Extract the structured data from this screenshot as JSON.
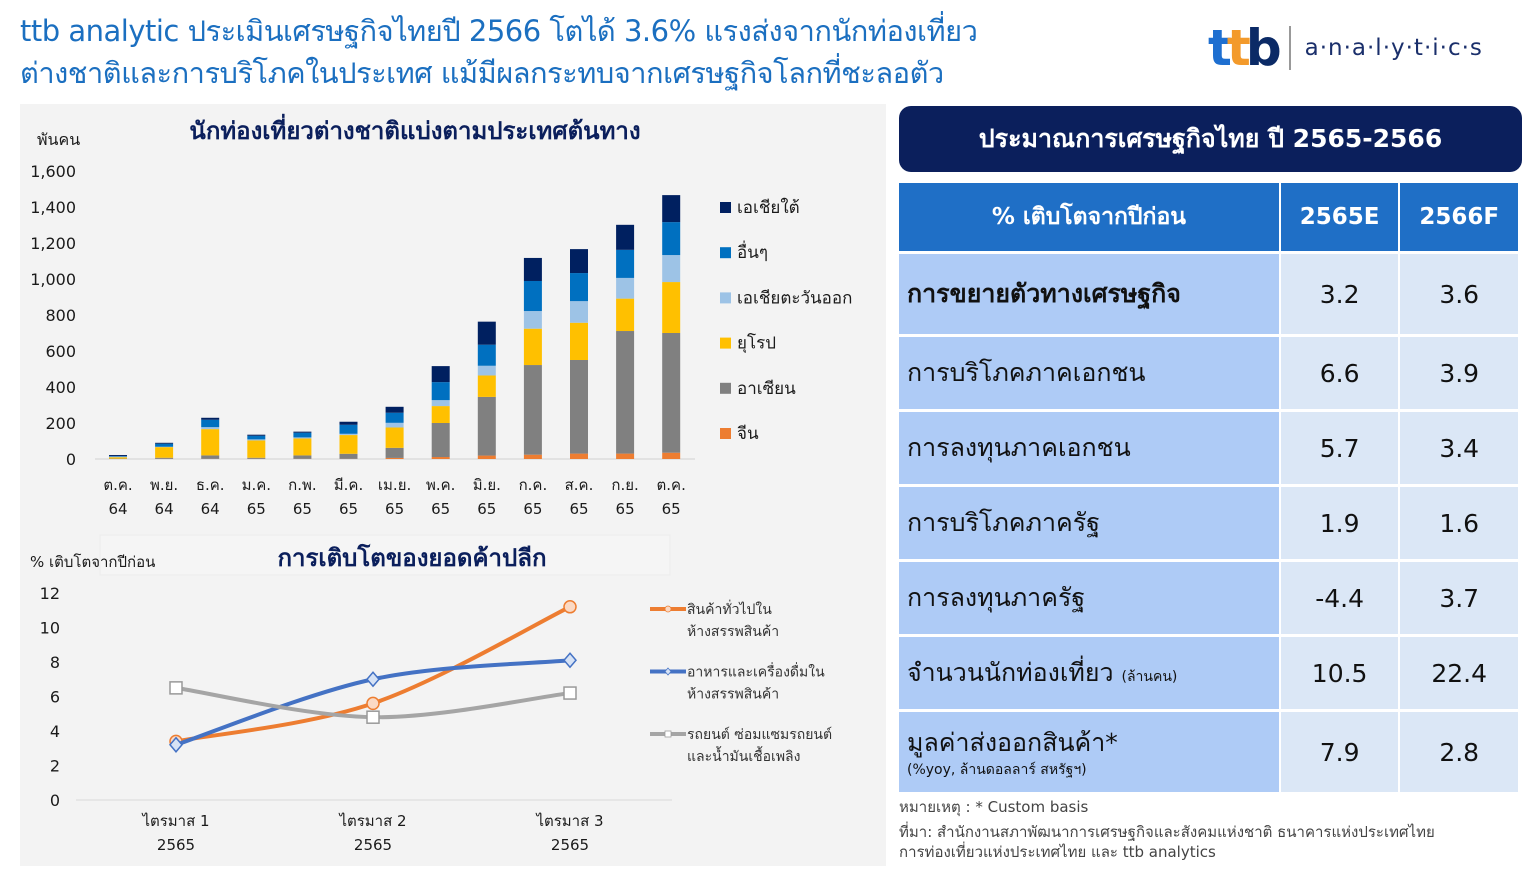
{
  "title": {
    "line1": "ttb analytic ประเมินเศรษฐกิจไทยปี 2566 โตได้ 3.6% แรงส่งจากนักท่องเที่ยว",
    "line2": "ต่างชาติและการบริโภคในประเทศ แม้มีผลกระทบจากเศรษฐกิจโลกที่ชะลอตัว"
  },
  "logo": {
    "mark": "ttb",
    "text": "a·n·a·l·y·t·i·c·s",
    "colors": [
      "#1e6fd0",
      "#f39a2b",
      "#0b2a66"
    ]
  },
  "chart_data": [
    {
      "type": "bar",
      "stacked": true,
      "title": "นักท่องเที่ยวต่างชาติแบ่งตามประเทศต้นทาง",
      "ylabel": "พันคน",
      "ylim": [
        0,
        1600
      ],
      "yticks": [
        "0",
        "200",
        "400",
        "600",
        "800",
        "1,000",
        "1,200",
        "1,400",
        "1,600"
      ],
      "categories": [
        [
          "ต.ค.",
          "64"
        ],
        [
          "พ.ย.",
          "64"
        ],
        [
          "ธ.ค.",
          "64"
        ],
        [
          "ม.ค.",
          "65"
        ],
        [
          "ก.พ.",
          "65"
        ],
        [
          "มี.ค.",
          "65"
        ],
        [
          "เม.ย.",
          "65"
        ],
        [
          "พ.ค.",
          "65"
        ],
        [
          "มิ.ย.",
          "65"
        ],
        [
          "ก.ค.",
          "65"
        ],
        [
          "ส.ค.",
          "65"
        ],
        [
          "ก.ย.",
          "65"
        ],
        [
          "ต.ค.",
          "65"
        ]
      ],
      "legend_position": "right",
      "series": [
        {
          "name": "จีน",
          "color": "#ed7d31",
          "values": [
            0,
            1,
            1,
            1,
            1,
            1,
            6,
            11,
            19,
            24,
            30,
            30,
            35
          ]
        },
        {
          "name": "อาเซียน",
          "color": "#808080",
          "values": [
            2,
            6,
            19,
            6,
            19,
            28,
            56,
            189,
            326,
            498,
            520,
            681,
            665
          ]
        },
        {
          "name": "ยุโรป",
          "color": "#ffc000",
          "values": [
            8,
            59,
            146,
            96,
            94,
            104,
            113,
            94,
            119,
            202,
            207,
            180,
            283
          ]
        },
        {
          "name": "เอเชียตะวันออก",
          "color": "#9dc3e6",
          "values": [
            3,
            2,
            11,
            6,
            6,
            7,
            26,
            33,
            54,
            98,
            120,
            115,
            150
          ]
        },
        {
          "name": "อื่นๆ",
          "color": "#0070c0",
          "values": [
            3,
            17,
            41,
            20,
            26,
            50,
            56,
            100,
            117,
            167,
            156,
            156,
            183
          ]
        },
        {
          "name": "เอเชียใต้",
          "color": "#002060",
          "values": [
            6,
            5,
            11,
            6,
            6,
            17,
            33,
            89,
            128,
            128,
            133,
            139,
            150
          ]
        }
      ]
    },
    {
      "type": "line",
      "title": "การเติบโตของยอดค้าปลีก",
      "ylabel": "% เติบโตจากปีก่อน",
      "ylim": [
        0,
        12
      ],
      "yticks": [
        "0",
        "2",
        "4",
        "6",
        "8",
        "10",
        "12"
      ],
      "categories": [
        [
          "ไตรมาส 1",
          "2565"
        ],
        [
          "ไตรมาส 2",
          "2565"
        ],
        [
          "ไตรมาส 3",
          "2565"
        ]
      ],
      "legend_position": "right",
      "series": [
        {
          "name": [
            "สินค้าทั่วไปใน",
            "ห้างสรรพสินค้า"
          ],
          "color": "#ed7d31",
          "marker": "circle",
          "values": [
            3.4,
            5.6,
            11.2
          ]
        },
        {
          "name": [
            "อาหารและเครื่องดื่มใน",
            "ห้างสรรพสินค้า"
          ],
          "color": "#4472c4",
          "marker": "diamond",
          "values": [
            3.2,
            7.0,
            8.1
          ]
        },
        {
          "name": [
            "รถยนต์ ซ่อมแซมรถยนต์",
            "และน้ำมันเชื้อเพลิง"
          ],
          "color": "#a5a5a5",
          "marker": "square",
          "values": [
            6.5,
            4.8,
            6.2
          ]
        }
      ]
    }
  ],
  "table": {
    "title": "ประมาณการเศรษฐกิจไทย ปี 2565-2566",
    "headers": [
      "% เติบโตจากปีก่อน",
      "2565E",
      "2566F"
    ],
    "rows": [
      {
        "label": "การขยายตัวทางเศรษฐกิจ",
        "sub": "",
        "bold": true,
        "v1": "3.2",
        "v2": "3.6"
      },
      {
        "label": "การบริโภคภาคเอกชน",
        "sub": "",
        "v1": "6.6",
        "v2": "3.9"
      },
      {
        "label": "การลงทุนภาคเอกชน",
        "sub": "",
        "v1": "5.7",
        "v2": "3.4"
      },
      {
        "label": "การบริโภคภาครัฐ",
        "sub": "",
        "v1": "1.9",
        "v2": "1.6"
      },
      {
        "label": "การลงทุนภาครัฐ",
        "sub": "",
        "v1": "-4.4",
        "v2": "3.7"
      },
      {
        "label": "จำนวนนักท่องเที่ยว",
        "inline_sub": "(ล้านคน)",
        "v1": "10.5",
        "v2": "22.4"
      },
      {
        "label": "มูลค่าส่งออกสินค้า*",
        "sub": "(%yoy, ล้านดอลลาร์ สหรัฐฯ)",
        "v1": "7.9",
        "v2": "2.8"
      }
    ]
  },
  "notes": {
    "remark": "หมายเหตุ :  *  Custom basis",
    "source1": "ที่มา: สำนักงานสภาพัฒนาการเศรษฐกิจและสังคมแห่งชาติ ธนาคารแห่งประเทศไทย",
    "source2": "การท่องเที่ยวแห่งประเทศไทย  และ ttb analytics"
  }
}
